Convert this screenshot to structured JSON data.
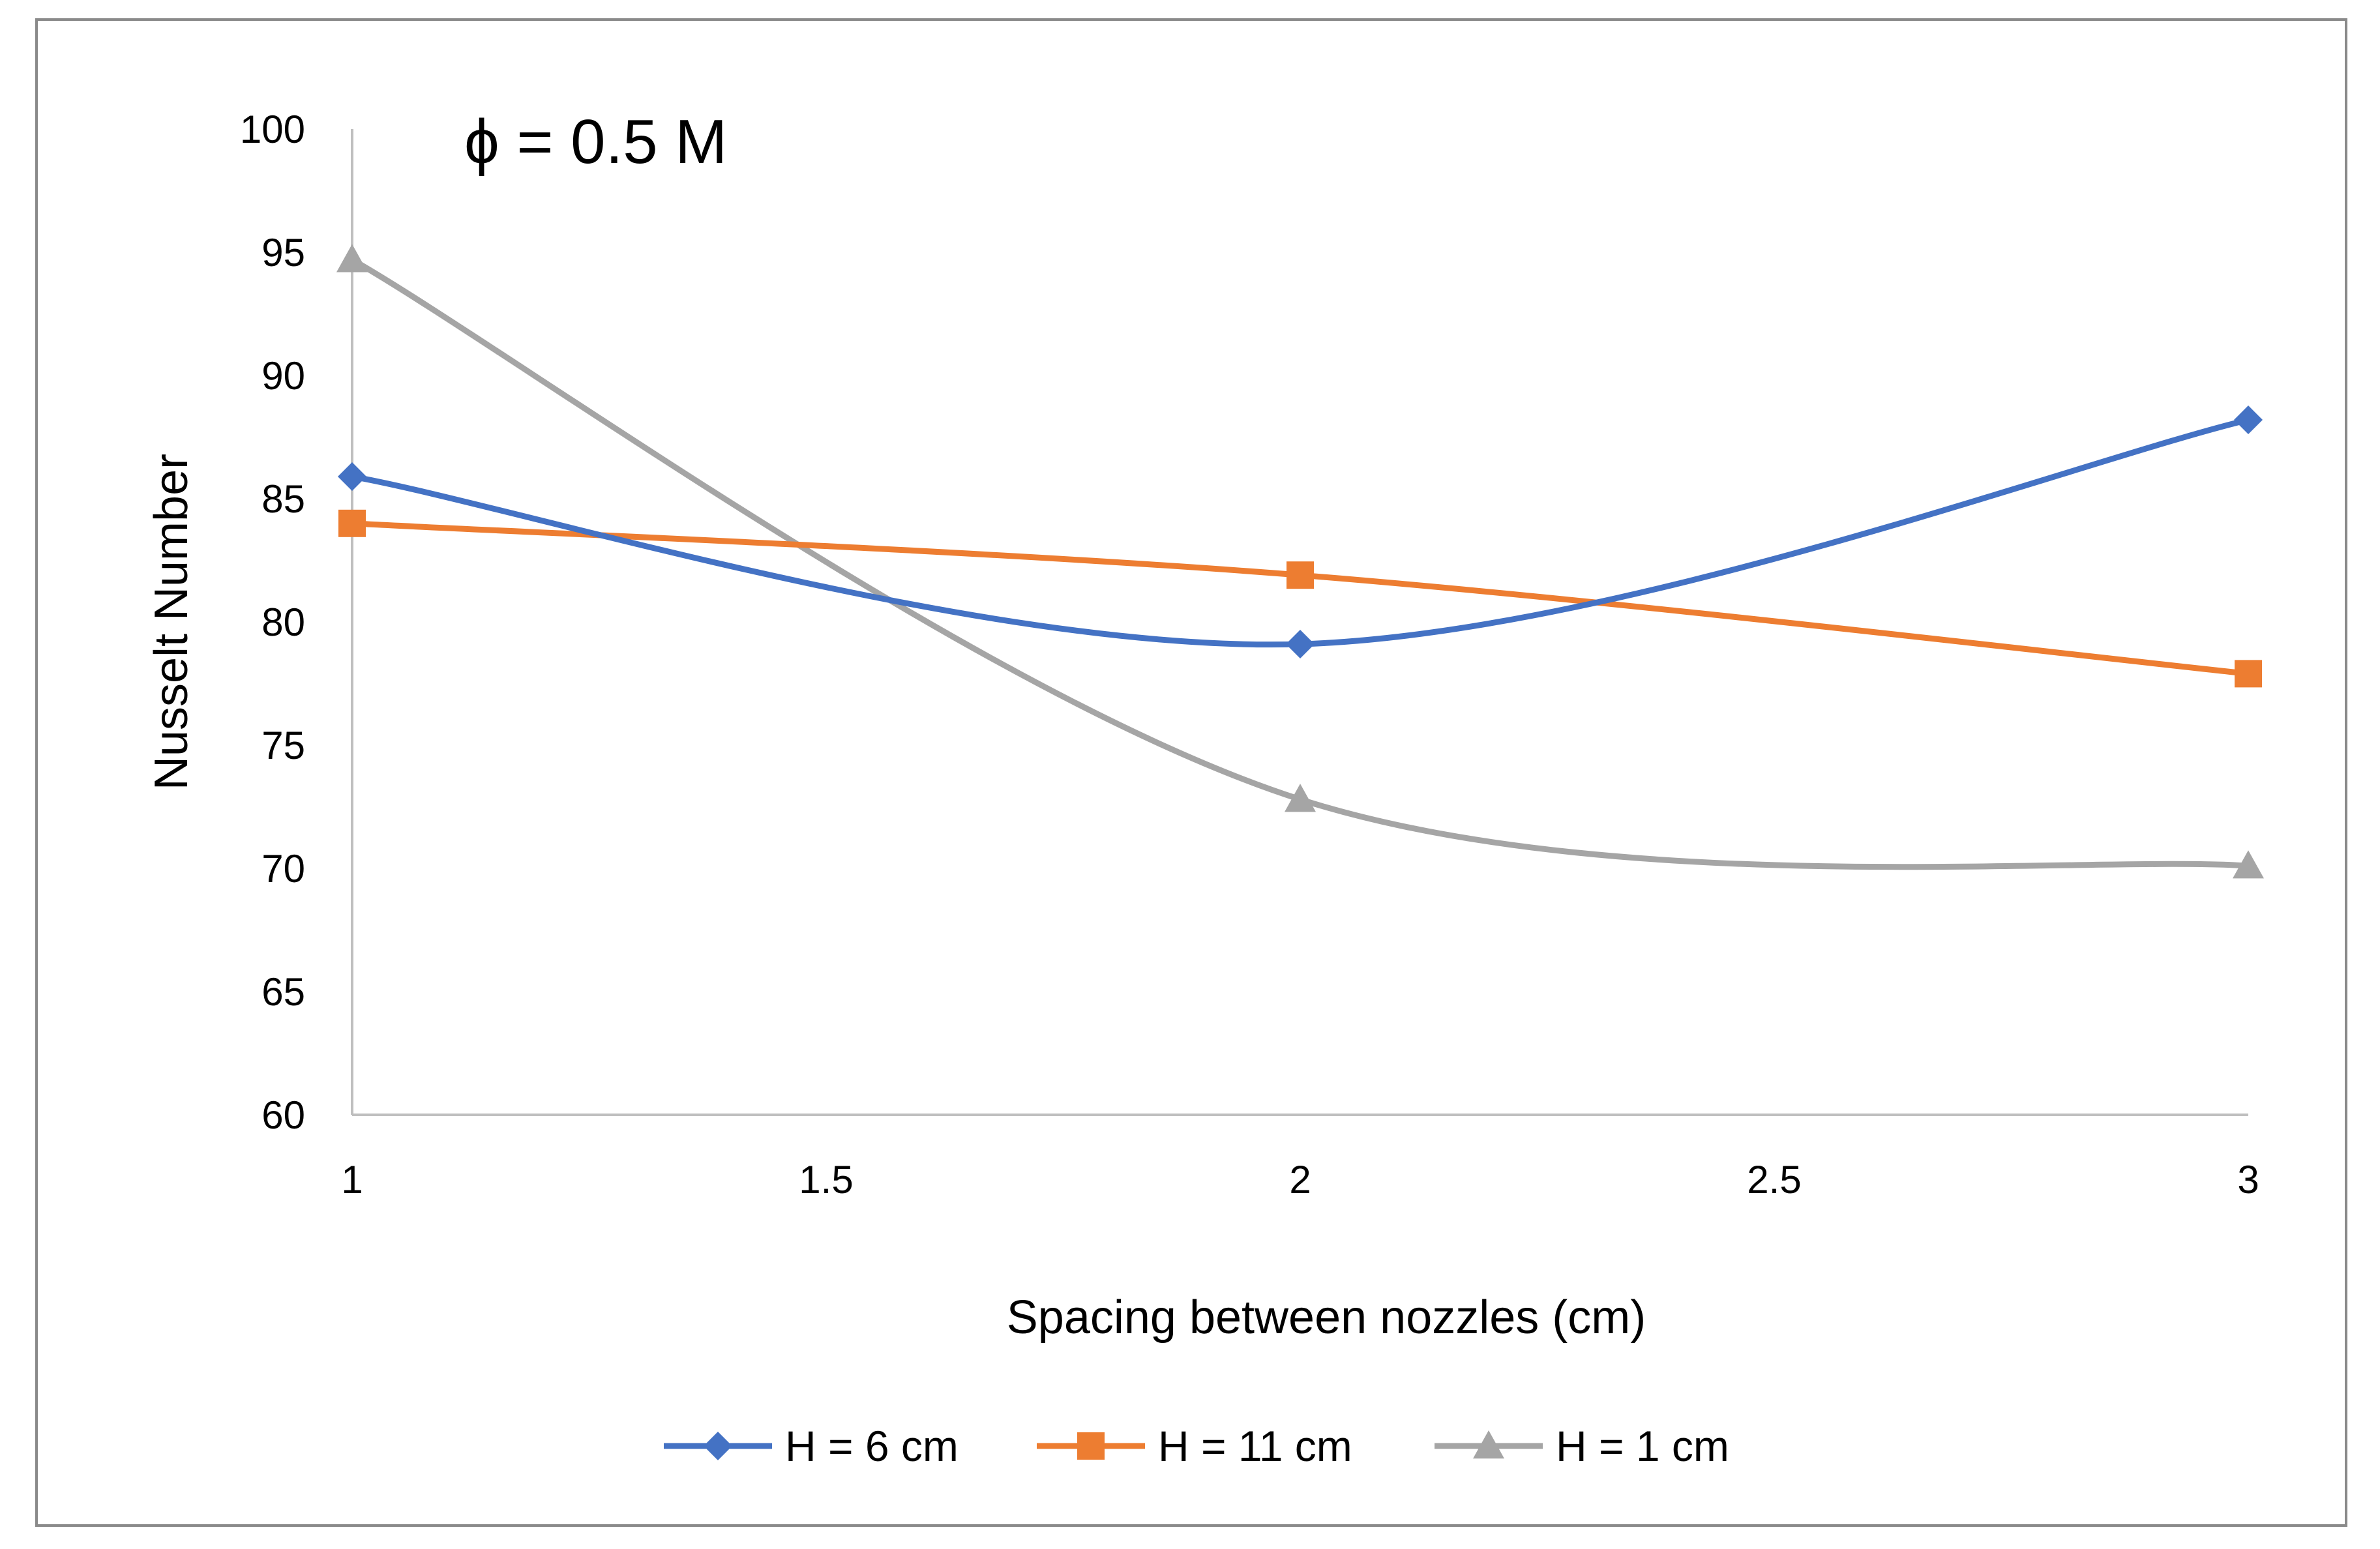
{
  "chart_data": {
    "type": "line",
    "title": "",
    "annotation": "ϕ = 0.5 M",
    "xlabel": "Spacing between nozzles (cm)",
    "ylabel": "Nusselt Number",
    "xlim": [
      1,
      3
    ],
    "ylim": [
      60,
      100
    ],
    "x_ticks": [
      "1",
      "1.5",
      "2",
      "2.5",
      "3"
    ],
    "y_ticks": [
      "60",
      "65",
      "70",
      "75",
      "80",
      "85",
      "90",
      "95",
      "100"
    ],
    "x": [
      1,
      2,
      3
    ],
    "series": [
      {
        "name": "H = 6 cm",
        "values": [
          85.9,
          79.1,
          88.2
        ],
        "color": "#4472c4",
        "marker": "diamond"
      },
      {
        "name": "H = 11 cm",
        "values": [
          84.0,
          81.9,
          77.9
        ],
        "color": "#ed7d31",
        "marker": "square"
      },
      {
        "name": "H = 1 cm",
        "values": [
          94.7,
          72.8,
          70.1
        ],
        "color": "#a5a5a5",
        "marker": "triangle"
      }
    ],
    "legend_position": "bottom",
    "grid": false
  }
}
